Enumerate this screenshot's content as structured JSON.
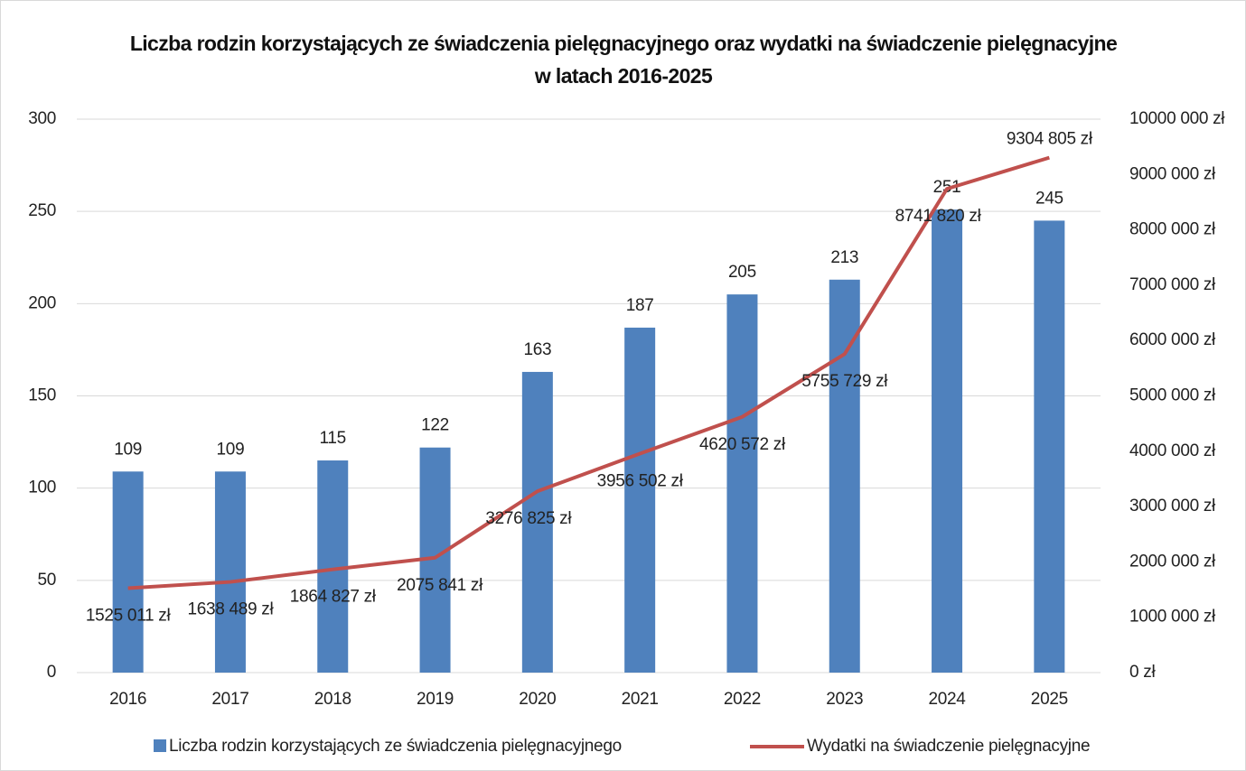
{
  "chart_data": {
    "type": "bar",
    "title": "Liczba rodzin korzystających ze świadczenia pielęgnacyjnego oraz wydatki na świadczenie pielęgnacyjne w latach 2016-2025",
    "categories": [
      "2016",
      "2017",
      "2018",
      "2019",
      "2020",
      "2021",
      "2022",
      "2023",
      "2024",
      "2025"
    ],
    "series": [
      {
        "name": "Liczba rodzin korzystających ze świadczenia pielęgnacyjnego",
        "type": "bar",
        "color": "#4f81bd",
        "values": [
          109,
          109,
          115,
          122,
          163,
          187,
          205,
          213,
          251,
          245
        ]
      },
      {
        "name": "Wydatki na świadczenie pielęgnacyjne",
        "type": "line",
        "axis": "y2",
        "color": "#c0504d",
        "values": [
          1525011,
          1638489,
          1864827,
          2075841,
          3276825,
          3956502,
          4620572,
          5755729,
          8741820,
          9304805
        ],
        "value_labels": [
          "1525 011 zł",
          "1638 489 zł",
          "1864 827 zł",
          "2075 841 zł",
          "3276 825 zł",
          "3956 502 zł",
          "4620 572 zł",
          "5755 729 zł",
          "8741 820 zł",
          "9304 805 zł"
        ]
      }
    ],
    "ylim": [
      0,
      300
    ],
    "yticks": [
      0,
      50,
      100,
      150,
      200,
      250,
      300
    ],
    "y2lim": [
      0,
      10000000
    ],
    "y2ticks": [
      {
        "value": 0,
        "label": "0 zł"
      },
      {
        "value": 1000000,
        "label": "1000 000 zł"
      },
      {
        "value": 2000000,
        "label": "2000 000 zł"
      },
      {
        "value": 3000000,
        "label": "3000 000 zł"
      },
      {
        "value": 4000000,
        "label": "4000 000 zł"
      },
      {
        "value": 5000000,
        "label": "5000 000 zł"
      },
      {
        "value": 6000000,
        "label": "6000 000 zł"
      },
      {
        "value": 7000000,
        "label": "7000 000 zł"
      },
      {
        "value": 8000000,
        "label": "8000 000 zł"
      },
      {
        "value": 9000000,
        "label": "9000 000 zł"
      },
      {
        "value": 10000000,
        "label": "10000 000 zł"
      }
    ],
    "grid": true,
    "legend": "bottom"
  }
}
